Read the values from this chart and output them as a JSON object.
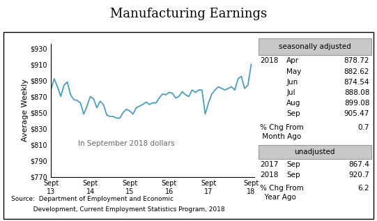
{
  "title": "Manufacturing Earnings",
  "ylabel": "Average Weekly",
  "annotation": "In September 2018 dollars",
  "source_line1": "Source:  Department of Employment and Economic",
  "source_line2": "           Development, Current Employment Statistics Program, 2018",
  "xtick_labels": [
    "Sept\n13",
    "Sept\n14",
    "Sept\n15",
    "Sept\n16",
    "Sept\n17",
    "Sept\n18"
  ],
  "ylim": [
    770,
    935
  ],
  "xlim": [
    0,
    62
  ],
  "line_color": "#4a9dc0",
  "line_width": 1.3,
  "background_color": "#ffffff",
  "sa_label": "seasonally adjusted",
  "sa_year": "2018",
  "sa_months": [
    "Apr",
    "May",
    "Jun",
    "Jul",
    "Aug",
    "Sep"
  ],
  "sa_values": [
    "878.72",
    "882.62",
    "874.54",
    "888.08",
    "899.08",
    "905.47"
  ],
  "sa_pct_label1": "% Chg From",
  "sa_pct_label2": " Month Ago",
  "sa_pct_value": "0.7",
  "ua_label": "unadjusted",
  "ua_rows": [
    [
      "2017",
      "Sep",
      "867.4"
    ],
    [
      "2018",
      "Sep",
      "920.7"
    ]
  ],
  "ua_pct_label1": "% Chg From",
  "ua_pct_label2": "  Year Ago",
  "ua_pct_value": "6.2",
  "y_values": [
    878,
    892,
    882,
    870,
    884,
    888,
    872,
    866,
    865,
    862,
    848,
    858,
    870,
    867,
    856,
    864,
    860,
    847,
    845,
    845,
    843,
    843,
    850,
    854,
    852,
    848,
    856,
    858,
    860,
    863,
    860,
    862,
    862,
    868,
    873,
    872,
    875,
    874,
    868,
    870,
    876,
    872,
    870,
    878,
    875,
    878,
    878,
    848,
    862,
    873,
    878,
    882,
    880,
    878,
    880,
    882,
    878,
    892,
    895,
    880,
    884,
    910
  ]
}
